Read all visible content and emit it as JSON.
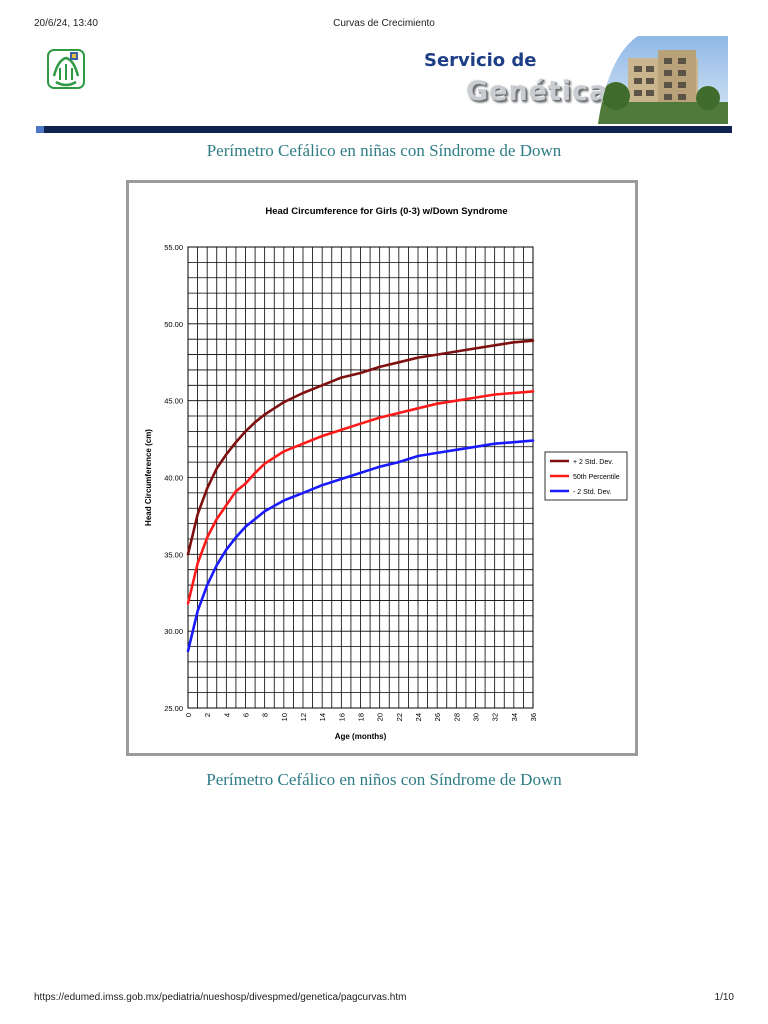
{
  "print_header": {
    "datetime": "20/6/24, 13:40",
    "page_title": "Curvas de Crecimiento"
  },
  "print_footer": {
    "url": "https://edumed.imss.gob.mx/pediatria/nueshosp/divespmed/genetica/pagcurvas.htm",
    "page": "1/10"
  },
  "banner": {
    "brand_line1": "Servicio de",
    "brand_line2": "Genética",
    "logo_icon": "imss-logo-icon"
  },
  "colors": {
    "header_bar": "#10224f",
    "section_title": "#2f7d86",
    "plus2": "#7f1010",
    "p50": "#ff1a1a",
    "minus2": "#1a1aff"
  },
  "sections": {
    "girls_title": "Perímetro Cefálico en niñas con Síndrome de Down",
    "boys_title": "Perímetro Cefálico en niños con Síndrome de Down"
  },
  "chart_data": {
    "type": "line",
    "title": "Head Circumference for Girls (0-3) w/Down Syndrome",
    "xlabel": "Age (months)",
    "ylabel": "Head Circumference (cm)",
    "xlim": [
      0,
      36
    ],
    "ylim": [
      25,
      55
    ],
    "x_ticks": [
      "0",
      "2",
      "4",
      "6",
      "8",
      "10",
      "12",
      "14",
      "16",
      "18",
      "20",
      "22",
      "24",
      "26",
      "28",
      "30",
      "32",
      "34",
      "36"
    ],
    "y_ticks": [
      "25.00",
      "30.00",
      "35.00",
      "40.00",
      "45.00",
      "50.00",
      "55.00"
    ],
    "grid": true,
    "legend_position": "right",
    "x": [
      0,
      1,
      2,
      3,
      4,
      5,
      6,
      7,
      8,
      10,
      12,
      14,
      16,
      18,
      20,
      22,
      24,
      26,
      28,
      30,
      32,
      34,
      36
    ],
    "series": [
      {
        "name": "+ 2 Std. Dev.",
        "color": "#7f1010",
        "values": [
          35.0,
          37.6,
          39.3,
          40.6,
          41.5,
          42.3,
          43.0,
          43.6,
          44.1,
          44.9,
          45.5,
          46.0,
          46.5,
          46.8,
          47.2,
          47.5,
          47.8,
          48.0,
          48.2,
          48.4,
          48.6,
          48.8,
          48.9
        ]
      },
      {
        "name": "50th Percentile",
        "color": "#ff1a1a",
        "values": [
          31.8,
          34.4,
          36.1,
          37.3,
          38.2,
          39.1,
          39.6,
          40.3,
          40.9,
          41.7,
          42.2,
          42.7,
          43.1,
          43.5,
          43.9,
          44.2,
          44.5,
          44.8,
          45.0,
          45.2,
          45.4,
          45.5,
          45.6
        ]
      },
      {
        "name": "- 2 Std. Dev.",
        "color": "#1a1aff",
        "values": [
          28.7,
          31.3,
          33.0,
          34.3,
          35.3,
          36.1,
          36.8,
          37.3,
          37.8,
          38.5,
          39.0,
          39.5,
          39.9,
          40.3,
          40.7,
          41.0,
          41.4,
          41.6,
          41.8,
          42.0,
          42.2,
          42.3,
          42.4
        ]
      }
    ]
  }
}
